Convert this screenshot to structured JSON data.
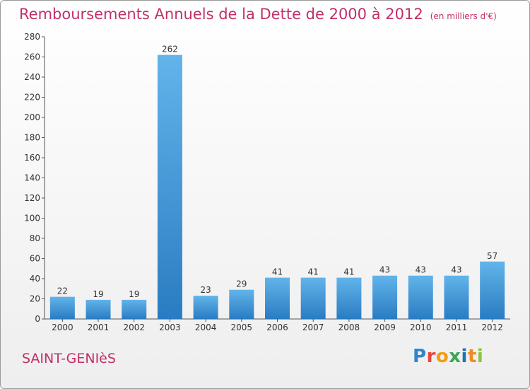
{
  "title": "Remboursements Annuels de la Dette de 2000 à 2012",
  "unit_note": "(en milliers d'€)",
  "place_name": "SAINT-GENIèS",
  "logo": {
    "text": "Proxiti",
    "letter_colors": [
      "#2e86c8",
      "#e8453c",
      "#f39c12",
      "#3aa655",
      "#1f73b7",
      "#f08a24",
      "#8ac33d"
    ]
  },
  "colors": {
    "title": "#c0306a",
    "bar_light": "#62b4ea",
    "bar_dark": "#2a7cc2"
  },
  "chart_data": {
    "type": "bar",
    "categories": [
      "2000",
      "2001",
      "2002",
      "2003",
      "2004",
      "2005",
      "2006",
      "2007",
      "2008",
      "2009",
      "2010",
      "2011",
      "2012"
    ],
    "values": [
      22,
      19,
      19,
      262,
      23,
      29,
      41,
      41,
      41,
      43,
      43,
      43,
      57
    ],
    "ylim": [
      0,
      280
    ],
    "yticks": [
      0,
      20,
      40,
      60,
      80,
      100,
      120,
      140,
      160,
      180,
      200,
      220,
      240,
      260,
      280
    ],
    "grid": false,
    "data_labels": true
  }
}
